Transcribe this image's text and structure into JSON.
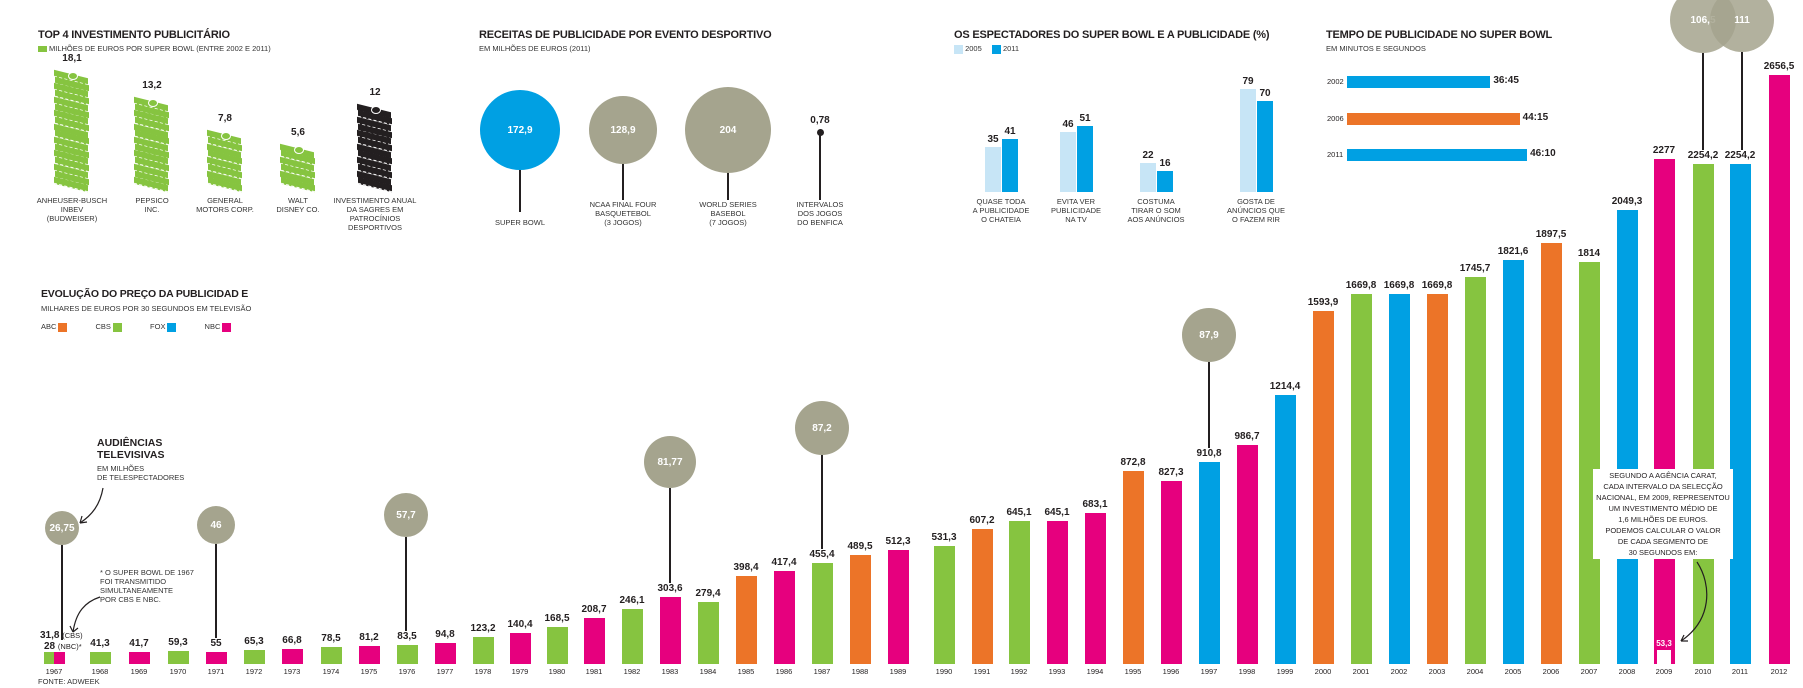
{
  "colors": {
    "abc": "#ec7428",
    "cbs": "#86c440",
    "fox": "#00a0e3",
    "nbc": "#e6007e",
    "audience": "#a5a48e",
    "light_blue": "#c7e5f6",
    "money_green": "#86c440",
    "money_black": "#231f20"
  },
  "panel_top4": {
    "title": "TOP 4 INVESTIMENTO PUBLICITÁRIO",
    "subtitle": "MILHÕES DE EUROS POR SUPER BOWL (ENTRE 2002 E 2011)",
    "items": [
      {
        "value": "18,1",
        "label": [
          "ANHEUSER-BUSCH",
          "INBEV",
          "(BUDWEISER)"
        ],
        "stack": 17,
        "color": "green"
      },
      {
        "value": "13,2",
        "label": [
          "PEPSICO",
          "INC."
        ],
        "stack": 13,
        "color": "green"
      },
      {
        "value": "7,8",
        "label": [
          "GENERAL",
          "MOTORS CORP."
        ],
        "stack": 8,
        "color": "green"
      },
      {
        "value": "5,6",
        "label": [
          "WALT",
          "DISNEY CO."
        ],
        "stack": 6,
        "color": "green"
      },
      {
        "value": "12",
        "label": [
          "INVESTIMENTO ANUAL",
          "DA SAGRES EM",
          "PATROCÍNIOS",
          "DESPORTIVOS"
        ],
        "stack": 12,
        "color": "black"
      }
    ]
  },
  "panel_receitas": {
    "title": "RECEITAS DE PUBLICIDADE POR EVENTO DESPORTIVO",
    "subtitle": "EM MILHÕES DE EUROS (2011)",
    "items": [
      {
        "value": "172,9",
        "label": [
          "SUPER BOWL"
        ],
        "color": "blue"
      },
      {
        "value": "128,9",
        "label": [
          "NCAA FINAL FOUR",
          "BASQUETEBOL",
          "(3 JOGOS)"
        ],
        "color": "grey"
      },
      {
        "value": "204",
        "label": [
          "WORLD SERIES",
          "BASEBOL",
          "(7 JOGOS)"
        ],
        "color": "grey"
      },
      {
        "value": "0,78",
        "label": [
          "INTERVALOS",
          "DOS JOGOS",
          "DO BENFICA"
        ],
        "color": "dot"
      }
    ]
  },
  "panel_espectadores": {
    "title": "OS ESPECTADORES DO SUPER BOWL E A PUBLICIDADE (%)",
    "legend": [
      "2005",
      "2011"
    ],
    "groups": [
      {
        "label": [
          "QUASE TODA",
          "A PUBLICIDADE",
          "O CHATEIA"
        ],
        "v2005": 35,
        "v2011": 41
      },
      {
        "label": [
          "EVITA VER",
          "PUBLICIDADE",
          "NA TV"
        ],
        "v2005": 46,
        "v2011": 51
      },
      {
        "label": [
          "COSTUMA",
          "TIRAR O SOM",
          "AOS ANÚNCIOS"
        ],
        "v2005": 22,
        "v2011": 16
      },
      {
        "label": [
          "GOSTA DE",
          "ANÚNCIOS QUE",
          "O FAZEM RIR"
        ],
        "v2005": 79,
        "v2011": 70
      }
    ]
  },
  "panel_tempo": {
    "title": "TEMPO DE PUBLICIDADE NO SUPER BOWL",
    "subtitle": "EM MINUTOS E SEGUNDOS",
    "rows": [
      {
        "year": "2002",
        "value": "36:45",
        "minutes": 36.75,
        "color": "fox"
      },
      {
        "year": "2006",
        "value": "44:15",
        "minutes": 44.25,
        "color": "abc"
      },
      {
        "year": "2011",
        "value": "46:10",
        "minutes": 46.17,
        "color": "fox"
      }
    ]
  },
  "main": {
    "title": "EVOLUÇÃO DO PREÇO DA PUBLICIDAD E",
    "subtitle": "MILHARES DE EUROS POR 30 SEGUNDOS EM TELEVISÃO",
    "legend": [
      {
        "name": "ABC",
        "key": "abc"
      },
      {
        "name": "CBS",
        "key": "cbs"
      },
      {
        "name": "FOX",
        "key": "fox"
      },
      {
        "name": "NBC",
        "key": "nbc"
      }
    ],
    "audience_title": [
      "AUDIÊNCIAS",
      "TELEVISIVAS"
    ],
    "audience_sub": [
      "EM MILHÕES",
      "DE TELESPECTADORES"
    ],
    "note_1967": [
      "* O SUPER BOWL DE 1967",
      "FOI TRANSMITIDO",
      "SIMULTANEAMENTE",
      "POR CBS E NBC."
    ],
    "label_1967_cbs": "31,8",
    "label_1967_cbs_tag": "(CBS)",
    "label_1967_nbc": "28",
    "label_1967_nbc_tag": "(NBC)*",
    "carat_note": [
      "SEGUNDO A AGÊNCIA CARAT,",
      "CADA INTERVALO DA SELECÇÃO",
      "NACIONAL, EM 2009, REPRESENTOU",
      "UM INVESTIMENTO MÉDIO DE",
      "1,6 MILHÕES DE EUROS.",
      "PODEMOS CALCULAR O VALOR",
      "DE CADA SEGMENTO DE",
      "30 SEGUNDOS EM:"
    ],
    "carat_value": "53,3",
    "source": "FONTE: ADWEEK"
  },
  "chart_data": {
    "type": "bar",
    "title": "EVOLUÇÃO DO PREÇO DA PUBLICIDADE",
    "ylabel": "MILHARES DE EUROS POR 30 SEGUNDOS EM TELEVISÃO",
    "categories": [
      "1967",
      "1968",
      "1969",
      "1970",
      "1971",
      "1972",
      "1973",
      "1974",
      "1975",
      "1976",
      "1977",
      "1978",
      "1979",
      "1980",
      "1981",
      "1982",
      "1983",
      "1984",
      "1985",
      "1986",
      "1987",
      "1988",
      "1989",
      "1990",
      "1991",
      "1992",
      "1993",
      "1994",
      "1995",
      "1996",
      "1997",
      "1998",
      "1999",
      "2000",
      "2001",
      "2002",
      "2003",
      "2004",
      "2005",
      "2006",
      "2007",
      "2008",
      "2009",
      "2010",
      "2011",
      "2012"
    ],
    "values": [
      31.8,
      41.3,
      41.7,
      59.3,
      55,
      65.3,
      66.8,
      78.5,
      81.2,
      83.5,
      94.8,
      123.2,
      140.4,
      168.5,
      208.7,
      246.1,
      303.6,
      279.4,
      398.4,
      417.4,
      455.4,
      489.5,
      512.3,
      531.3,
      607.2,
      645.1,
      645.1,
      683.1,
      872.8,
      827.3,
      910.8,
      986.7,
      1214.4,
      1593.9,
      1669.8,
      1669.8,
      1669.8,
      1745.7,
      1821.6,
      1897.5,
      1814,
      2049.3,
      2277,
      2254.2,
      2254.2,
      2656.5
    ],
    "labels": [
      "31,8",
      "41,3",
      "41,7",
      "59,3",
      "55",
      "65,3",
      "66,8",
      "78,5",
      "81,2",
      "83,5",
      "94,8",
      "123,2",
      "140,4",
      "168,5",
      "208,7",
      "246,1",
      "303,6",
      "279,4",
      "398,4",
      "417,4",
      "455,4",
      "489,5",
      "512,3",
      "531,3",
      "607,2",
      "645,1",
      "645,1",
      "683,1",
      "872,8",
      "827,3",
      "910,8",
      "986,7",
      "1214,4",
      "1593,9",
      "1669,8",
      "1669,8",
      "1669,8",
      "1745,7",
      "1821,6",
      "1897,5",
      "1814",
      "2049,3",
      "2277",
      "2254,2",
      "2254,2",
      "2656,5"
    ],
    "networks": [
      "cbs+nbc",
      "cbs",
      "nbc",
      "cbs",
      "nbc",
      "cbs",
      "nbc",
      "cbs",
      "nbc",
      "cbs",
      "nbc",
      "cbs",
      "nbc",
      "cbs",
      "nbc",
      "cbs",
      "nbc",
      "cbs",
      "abc",
      "nbc",
      "cbs",
      "abc",
      "nbc",
      "cbs",
      "abc",
      "cbs",
      "nbc",
      "nbc",
      "abc",
      "nbc",
      "fox",
      "nbc",
      "fox",
      "abc",
      "cbs",
      "fox",
      "abc",
      "cbs",
      "fox",
      "abc",
      "cbs",
      "fox",
      "nbc",
      "cbs",
      "fox",
      "nbc"
    ],
    "audience": [
      {
        "year": "1967",
        "value": "26,75"
      },
      {
        "year": "1971",
        "value": "46"
      },
      {
        "year": "1976",
        "value": "57,7"
      },
      {
        "year": "1983",
        "value": "81,77"
      },
      {
        "year": "1987",
        "value": "87,2"
      },
      {
        "year": "1997",
        "value": "87,9"
      },
      {
        "year": "2010",
        "value": "106,5"
      },
      {
        "year": "2011",
        "value": "111"
      }
    ],
    "ylim": [
      0,
      2700
    ],
    "grid": false,
    "legend_position": "top-left"
  }
}
